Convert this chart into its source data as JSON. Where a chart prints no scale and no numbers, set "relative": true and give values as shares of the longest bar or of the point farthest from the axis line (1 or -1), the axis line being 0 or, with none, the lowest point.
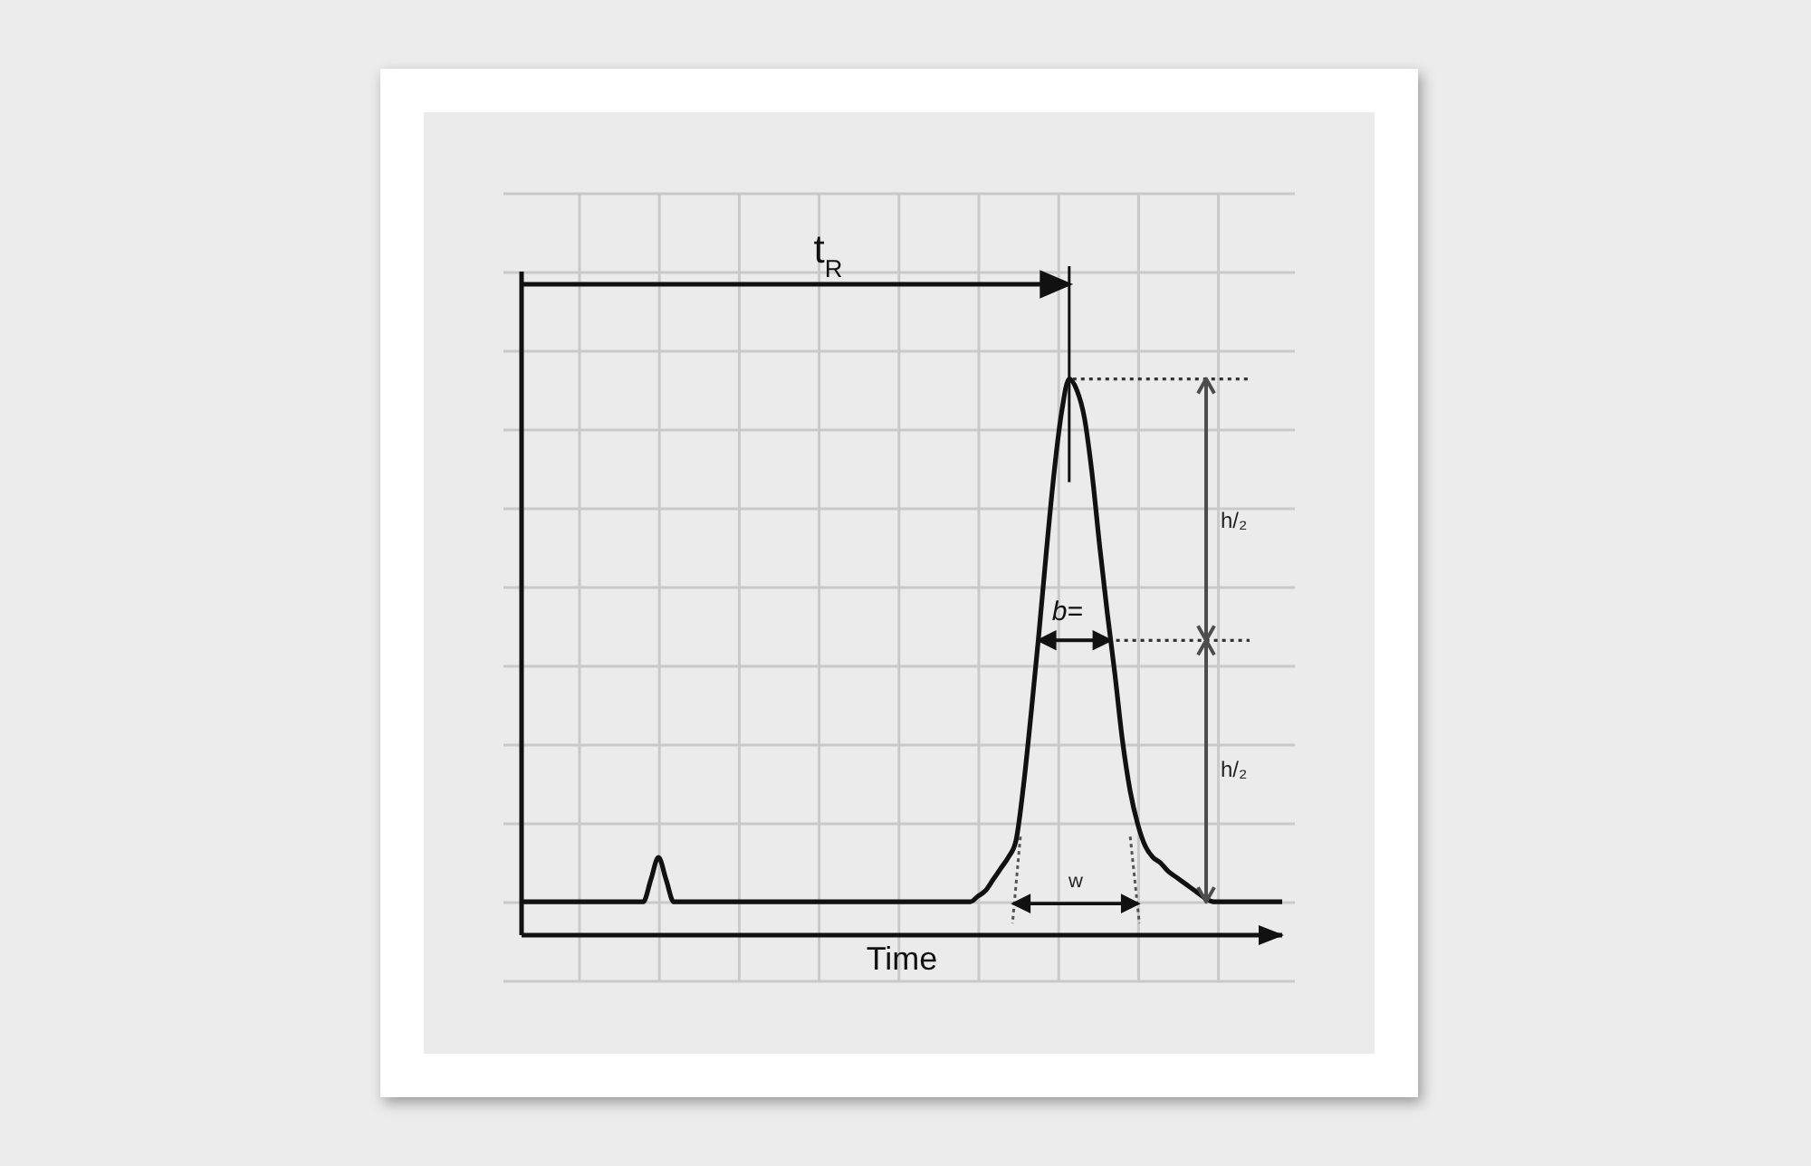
{
  "chart_data": {
    "type": "line",
    "relative": true,
    "categories": [
      null,
      null,
      null,
      null,
      null,
      null,
      null,
      null,
      null,
      null,
      null,
      null,
      null,
      null,
      null,
      null,
      null,
      null,
      null,
      null,
      null,
      null,
      null,
      null,
      null,
      null,
      null,
      null,
      null,
      null,
      null,
      null,
      null,
      null,
      null,
      null,
      null,
      null,
      null,
      null,
      null,
      null,
      null,
      null,
      null,
      null,
      null,
      null,
      null,
      null,
      null,
      null,
      null,
      null,
      null,
      null,
      null,
      null,
      null,
      null,
      null,
      null,
      null,
      null,
      null,
      null,
      null,
      null,
      null,
      null,
      null,
      null,
      null,
      null,
      null,
      null,
      null,
      null,
      null,
      null,
      null,
      null,
      null,
      null,
      null,
      null,
      null,
      null,
      null,
      null,
      null,
      null,
      null,
      null,
      null,
      null,
      null,
      null,
      null,
      null,
      null
    ],
    "values": [
      0.06,
      0.06,
      0.06,
      0.06,
      0.06,
      0.06,
      0.06,
      0.06,
      0.06,
      0.06,
      0.06,
      0.06,
      0.06,
      0.06,
      0.06,
      0.06,
      0.06,
      0.1,
      0.14,
      0.1,
      0.06,
      0.06,
      0.06,
      0.06,
      0.06,
      0.06,
      0.06,
      0.06,
      0.06,
      0.06,
      0.06,
      0.06,
      0.06,
      0.06,
      0.06,
      0.06,
      0.06,
      0.06,
      0.06,
      0.06,
      0.06,
      0.06,
      0.06,
      0.06,
      0.06,
      0.06,
      0.06,
      0.06,
      0.06,
      0.06,
      0.06,
      0.06,
      0.06,
      0.06,
      0.06,
      0.06,
      0.06,
      0.06,
      0.06,
      0.06,
      0.07,
      0.08,
      0.1,
      0.12,
      0.14,
      0.17,
      0.27,
      0.4,
      0.54,
      0.69,
      0.83,
      0.94,
      1,
      0.98,
      0.93,
      0.83,
      0.7,
      0.58,
      0.47,
      0.35,
      0.26,
      0.2,
      0.16,
      0.14,
      0.13,
      0.115,
      0.105,
      0.095,
      0.085,
      0.075,
      0.065,
      0.06,
      0.06,
      0.06,
      0.06,
      0.06,
      0.06,
      0.06,
      0.06,
      0.06,
      0.06
    ],
    "color": "#111111",
    "xlabel": "Time",
    "grid": true,
    "annotations": [
      "t$_{R}$",
      "h/₂",
      "h/₂",
      "b=",
      "w"
    ]
  }
}
